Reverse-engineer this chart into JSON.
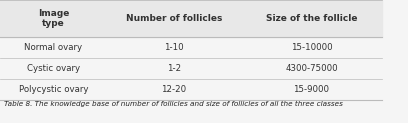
{
  "headers": [
    "Image\ntype",
    "Number of follicles",
    "Size of the follicle"
  ],
  "rows": [
    [
      "Normal ovary",
      "1-10",
      "15-10000"
    ],
    [
      "Cystic ovary",
      "1-2",
      "4300-75000"
    ],
    [
      "Polycystic ovary",
      "12-20",
      "15-9000"
    ]
  ],
  "caption": "Table 8. The knowledge base of number of follicles and size of follicles of all the three classes",
  "bg_color": "#f5f5f5",
  "header_bg": "#e8e8e8",
  "line_color": "#bbbbbb",
  "text_color": "#333333",
  "caption_color": "#222222"
}
